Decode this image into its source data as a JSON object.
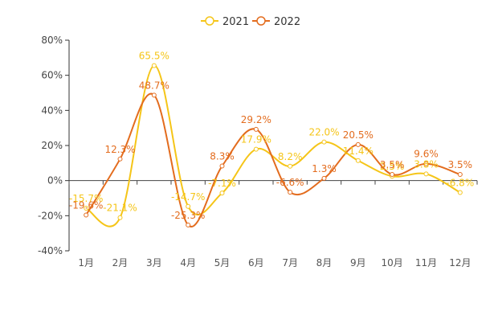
{
  "chart_data": {
    "type": "line",
    "categories": [
      "1月",
      "2月",
      "3月",
      "4月",
      "5月",
      "6月",
      "7月",
      "8月",
      "9月",
      "10月",
      "11月",
      "12月"
    ],
    "series": [
      {
        "name": "2021",
        "color": "#f5c518",
        "values": [
          -15.7,
          -21.1,
          65.5,
          -14.7,
          -7.1,
          17.9,
          8.2,
          22.0,
          11.4,
          2.5,
          3.8,
          -6.8
        ],
        "labels": [
          "-15.7%",
          "-21.1%",
          "65.5%",
          "-14.7%",
          "-7.1%",
          "17.9%",
          "8.2%",
          "22.0%",
          "11.4%",
          "2.5%",
          "3.8%",
          "-6.8%"
        ]
      },
      {
        "name": "2022",
        "color": "#e36c1e",
        "values": [
          -19.6,
          12.3,
          48.7,
          -25.3,
          8.3,
          29.2,
          -6.6,
          1.3,
          20.5,
          3.5,
          9.6,
          3.5
        ],
        "labels": [
          "-19.6%",
          "12.3%",
          "48.7%",
          "-25.3%",
          "8.3%",
          "29.2%",
          "-6.6%",
          "1.3%",
          "20.5%",
          "3.5%",
          "9.6%",
          "3.5%"
        ]
      }
    ],
    "yticks": [
      "80%",
      "60%",
      "40%",
      "20%",
      "0%",
      "-20%",
      "-40%"
    ],
    "ylim": [
      -40,
      80
    ],
    "grid": false,
    "legend_position": "top-center",
    "smooth": true
  }
}
